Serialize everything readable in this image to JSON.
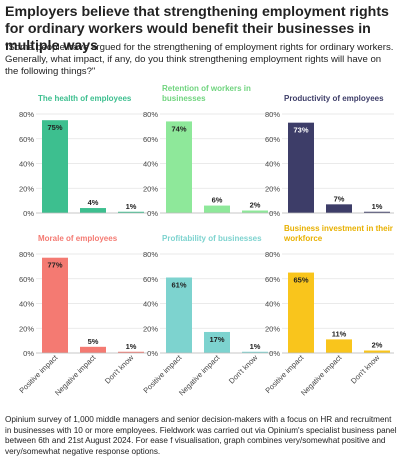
{
  "title": "Employers believe that strengthening employment rights for ordinary workers would benefit their businesses in multiple ways",
  "subtitle": "\"Some people have argued for the strengthening of employment rights for ordinary workers. Generally, what impact, if any, do you think strengthening employment rights will have on the following things?\"",
  "footer": "Opinium survey of 1,000 middle managers and senior decision-makers with a focus on HR and recruitment in businesses with 10 or more employees. Fieldwork was carried out via Opinium's specialist business panel between 6th and 21st August 2024. For ease f visualisation, graph combines very/somewhat positive and very/somewhat negative response options.",
  "chart_data": [
    {
      "type": "bar",
      "title_lines": [
        "The health of employees"
      ],
      "color": "#3dbf8f",
      "categories": [
        "Positive impact",
        "Negative impact",
        "Don't know"
      ],
      "values": [
        75,
        4,
        1
      ],
      "labels": [
        "75%",
        "4%",
        "1%"
      ],
      "ylim": [
        0,
        80
      ],
      "yticks": [
        "0%",
        "20%",
        "40%",
        "60%",
        "80%"
      ]
    },
    {
      "type": "bar",
      "title_lines": [
        "Retention of workers in",
        "businesses"
      ],
      "color": "#8ee89a",
      "categories": [
        "Positive impact",
        "Negative impact",
        "Don't know"
      ],
      "values": [
        74,
        6,
        2
      ],
      "labels": [
        "74%",
        "6%",
        "2%"
      ],
      "ylim": [
        0,
        80
      ],
      "yticks": [
        "0%",
        "20%",
        "40%",
        "60%",
        "80%"
      ]
    },
    {
      "type": "bar",
      "title_lines": [
        "Productivity of employees"
      ],
      "color": "#3d3d68",
      "categories": [
        "Positive impact",
        "Negative impact",
        "Don't know"
      ],
      "values": [
        73,
        7,
        1
      ],
      "labels": [
        "73%",
        "7%",
        "1%"
      ],
      "ylim": [
        0,
        80
      ],
      "yticks": [
        "0%",
        "20%",
        "40%",
        "60%",
        "80%"
      ]
    },
    {
      "type": "bar",
      "title_lines": [
        "Morale of employees"
      ],
      "color": "#f47a72",
      "categories": [
        "Positive impact",
        "Negative impact",
        "Don't know"
      ],
      "values": [
        77,
        5,
        1
      ],
      "labels": [
        "77%",
        "5%",
        "1%"
      ],
      "ylim": [
        0,
        80
      ],
      "yticks": [
        "0%",
        "20%",
        "40%",
        "60%",
        "80%"
      ]
    },
    {
      "type": "bar",
      "title_lines": [
        "Profitability of businesses"
      ],
      "color": "#7dd3cf",
      "categories": [
        "Positive impact",
        "Negative impact",
        "Don't know"
      ],
      "values": [
        61,
        17,
        1
      ],
      "labels": [
        "61%",
        "17%",
        "1%"
      ],
      "ylim": [
        0,
        80
      ],
      "yticks": [
        "0%",
        "20%",
        "40%",
        "60%",
        "80%"
      ]
    },
    {
      "type": "bar",
      "title_lines": [
        "Business investment in their",
        "workforce"
      ],
      "color": "#f9c51c",
      "categories": [
        "Positive impact",
        "Negative impact",
        "Don't know"
      ],
      "values": [
        65,
        11,
        2
      ],
      "labels": [
        "65%",
        "11%",
        "2%"
      ],
      "ylim": [
        0,
        80
      ],
      "yticks": [
        "0%",
        "20%",
        "40%",
        "60%",
        "80%"
      ]
    }
  ]
}
